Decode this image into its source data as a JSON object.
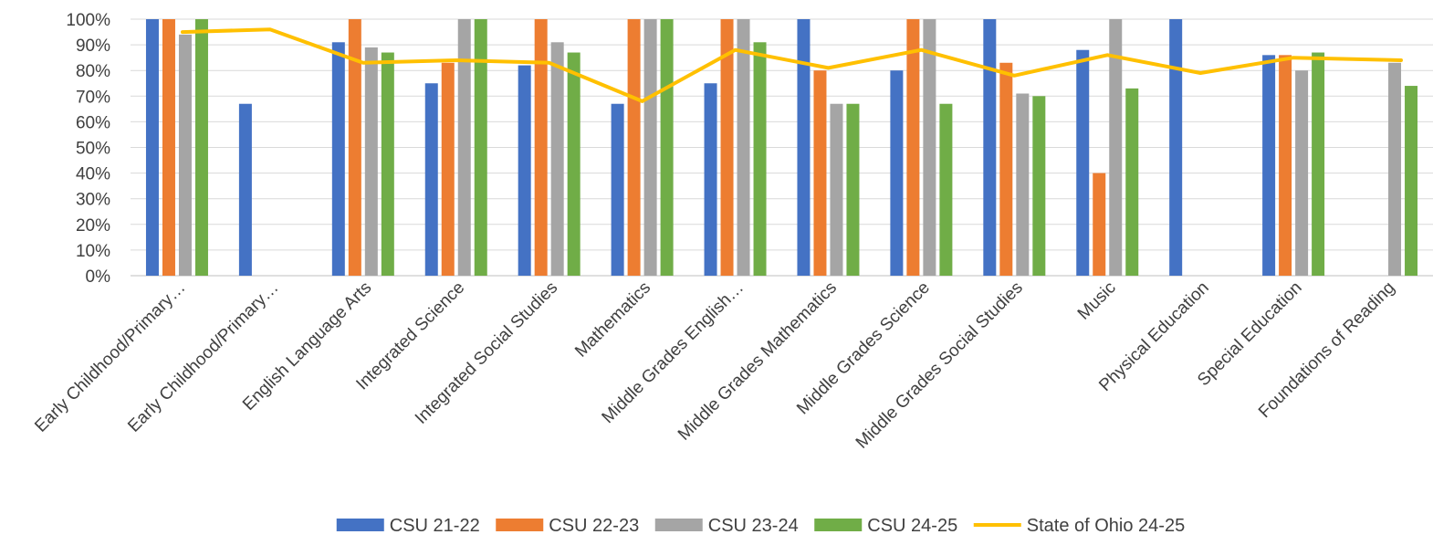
{
  "chart_data": {
    "type": "bar",
    "title": "",
    "xlabel": "",
    "ylabel": "",
    "ylim": [
      0,
      100
    ],
    "y_ticks": [
      "0%",
      "10%",
      "20%",
      "30%",
      "40%",
      "50%",
      "60%",
      "70%",
      "80%",
      "90%",
      "100%"
    ],
    "grid": true,
    "legend_position": "bottom",
    "categories": [
      "Early Childhood/Primary…",
      "Early Childhood/Primary…",
      "English Language Arts",
      "Integrated Science",
      "Integrated Social Studies",
      "Mathematics",
      "Middle Grades English…",
      "Middle Grades Mathematics",
      "Middle Grades Science",
      "Middle Grades Social Studies",
      "Music",
      "Physical Education",
      "Special Education",
      "Foundations of Reading"
    ],
    "series": [
      {
        "name": "CSU 21-22",
        "kind": "bar",
        "color": "#4472C4",
        "values": [
          100,
          67,
          91,
          75,
          82,
          67,
          75,
          100,
          80,
          100,
          88,
          100,
          86,
          null
        ]
      },
      {
        "name": "CSU 22-23",
        "kind": "bar",
        "color": "#ED7D31",
        "values": [
          100,
          null,
          100,
          83,
          100,
          100,
          100,
          80,
          100,
          83,
          40,
          null,
          86,
          null
        ]
      },
      {
        "name": "CSU 23-24",
        "kind": "bar",
        "color": "#A5A5A5",
        "values": [
          94,
          null,
          89,
          100,
          91,
          100,
          100,
          67,
          100,
          71,
          100,
          null,
          80,
          83
        ]
      },
      {
        "name": "CSU 24-25",
        "kind": "bar",
        "color": "#70AD47",
        "values": [
          100,
          null,
          87,
          100,
          87,
          100,
          91,
          67,
          67,
          70,
          73,
          null,
          87,
          74
        ]
      },
      {
        "name": "State of Ohio 24-25",
        "kind": "line",
        "color": "#FFC000",
        "values": [
          95,
          96,
          83,
          84,
          83,
          68,
          88,
          81,
          88,
          78,
          86,
          79,
          85,
          84
        ]
      }
    ]
  }
}
